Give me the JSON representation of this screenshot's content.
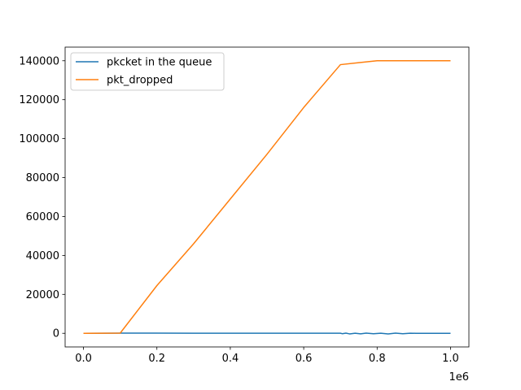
{
  "chart_data": {
    "type": "line",
    "title": "",
    "xlabel": "",
    "ylabel": "",
    "x_offset_label": "1e6",
    "xlim": [
      -50000,
      1050000
    ],
    "ylim": [
      -7000,
      147000
    ],
    "x_ticks": [
      0,
      200000,
      400000,
      600000,
      800000,
      1000000
    ],
    "x_tick_labels": [
      "0.0",
      "0.2",
      "0.4",
      "0.6",
      "0.8",
      "1.0"
    ],
    "y_ticks": [
      0,
      20000,
      40000,
      60000,
      80000,
      100000,
      120000,
      140000
    ],
    "y_tick_labels": [
      "0",
      "20000",
      "40000",
      "60000",
      "80000",
      "100000",
      "120000",
      "140000"
    ],
    "grid": false,
    "legend_position": "top-left",
    "series": [
      {
        "name": "pkcket in the queue",
        "color": "#1f77b4",
        "x": [
          0,
          100000,
          200000,
          300000,
          400000,
          500000,
          600000,
          700000,
          705000,
          715000,
          725000,
          740000,
          755000,
          770000,
          790000,
          810000,
          830000,
          850000,
          870000,
          890000,
          905000,
          910000,
          1000000
        ],
        "y": [
          0,
          100,
          100,
          50,
          50,
          50,
          50,
          50,
          -200,
          100,
          -300,
          50,
          -250,
          100,
          -200,
          50,
          -300,
          100,
          -200,
          50,
          0,
          0,
          0
        ]
      },
      {
        "name": "pkt_dropped",
        "color": "#ff7f0e",
        "x": [
          0,
          100000,
          200000,
          300000,
          400000,
          500000,
          600000,
          700000,
          750000,
          800000,
          900000,
          1000000
        ],
        "y": [
          0,
          100,
          24500,
          46000,
          69000,
          92000,
          116000,
          138000,
          139000,
          140000,
          140000,
          140000
        ]
      }
    ]
  }
}
